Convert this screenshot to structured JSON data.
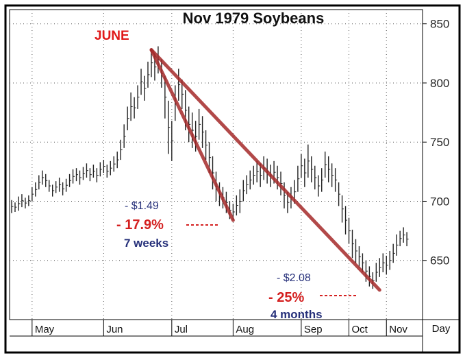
{
  "chart_data": {
    "type": "bar",
    "subtype": "ohlc",
    "title": "Nov 1979 Soybeans",
    "y_axis_side": "right",
    "ylim": [
      600,
      862
    ],
    "yticks": [
      650,
      700,
      750,
      800,
      850
    ],
    "grid": true,
    "x_tick_labels": [
      "May",
      "Jun",
      "Jul",
      "Aug",
      "Sep",
      "Oct",
      "Nov"
    ],
    "x_period_label": "Day",
    "series": [
      {
        "values": [
          {
            "t": 0.0,
            "h": 701,
            "l": 690
          },
          {
            "t": 0.5,
            "h": 699,
            "l": 691
          },
          {
            "t": 1.0,
            "h": 704,
            "l": 692
          },
          {
            "t": 1.5,
            "h": 706,
            "l": 695
          },
          {
            "t": 2.0,
            "h": 703,
            "l": 694
          },
          {
            "t": 2.5,
            "h": 705,
            "l": 696
          },
          {
            "t": 3.0,
            "h": 712,
            "l": 700
          },
          {
            "t": 3.5,
            "h": 716,
            "l": 704
          },
          {
            "t": 4.0,
            "h": 722,
            "l": 710
          },
          {
            "t": 4.5,
            "h": 726,
            "l": 714
          },
          {
            "t": 5.0,
            "h": 723,
            "l": 712
          },
          {
            "t": 5.5,
            "h": 718,
            "l": 708
          },
          {
            "t": 6.0,
            "h": 714,
            "l": 704
          },
          {
            "t": 6.5,
            "h": 717,
            "l": 707
          },
          {
            "t": 7.0,
            "h": 720,
            "l": 708
          },
          {
            "t": 7.5,
            "h": 716,
            "l": 705
          },
          {
            "t": 8.0,
            "h": 719,
            "l": 708
          },
          {
            "t": 8.5,
            "h": 723,
            "l": 712
          },
          {
            "t": 9.0,
            "h": 727,
            "l": 715
          },
          {
            "t": 9.5,
            "h": 728,
            "l": 717
          },
          {
            "t": 10.0,
            "h": 726,
            "l": 714
          },
          {
            "t": 10.5,
            "h": 729,
            "l": 718
          },
          {
            "t": 11.0,
            "h": 732,
            "l": 720
          },
          {
            "t": 11.5,
            "h": 728,
            "l": 717
          },
          {
            "t": 12.0,
            "h": 731,
            "l": 720
          },
          {
            "t": 12.5,
            "h": 728,
            "l": 716
          },
          {
            "t": 13.0,
            "h": 733,
            "l": 721
          },
          {
            "t": 13.5,
            "h": 735,
            "l": 724
          },
          {
            "t": 14.0,
            "h": 731,
            "l": 720
          },
          {
            "t": 14.5,
            "h": 734,
            "l": 722
          },
          {
            "t": 15.0,
            "h": 738,
            "l": 725
          },
          {
            "t": 15.5,
            "h": 742,
            "l": 728
          },
          {
            "t": 16.0,
            "h": 752,
            "l": 735
          },
          {
            "t": 16.5,
            "h": 765,
            "l": 745
          },
          {
            "t": 17.0,
            "h": 780,
            "l": 760
          },
          {
            "t": 17.5,
            "h": 792,
            "l": 768
          },
          {
            "t": 18.0,
            "h": 788,
            "l": 770
          },
          {
            "t": 18.5,
            "h": 798,
            "l": 778
          },
          {
            "t": 19.0,
            "h": 812,
            "l": 790
          },
          {
            "t": 19.5,
            "h": 806,
            "l": 785
          },
          {
            "t": 20.0,
            "h": 818,
            "l": 796
          },
          {
            "t": 20.5,
            "h": 829,
            "l": 805
          },
          {
            "t": 21.0,
            "h": 825,
            "l": 802
          },
          {
            "t": 21.5,
            "h": 831,
            "l": 808
          },
          {
            "t": 22.0,
            "h": 820,
            "l": 796
          },
          {
            "t": 22.5,
            "h": 806,
            "l": 770
          },
          {
            "t": 23.0,
            "h": 785,
            "l": 740
          },
          {
            "t": 23.5,
            "h": 768,
            "l": 734
          },
          {
            "t": 24.0,
            "h": 798,
            "l": 768
          },
          {
            "t": 24.5,
            "h": 812,
            "l": 785
          },
          {
            "t": 25.0,
            "h": 803,
            "l": 778
          },
          {
            "t": 25.5,
            "h": 794,
            "l": 760
          },
          {
            "t": 26.0,
            "h": 780,
            "l": 750
          },
          {
            "t": 26.5,
            "h": 775,
            "l": 745
          },
          {
            "t": 27.0,
            "h": 768,
            "l": 742
          },
          {
            "t": 27.5,
            "h": 778,
            "l": 752
          },
          {
            "t": 28.0,
            "h": 772,
            "l": 745
          },
          {
            "t": 28.5,
            "h": 760,
            "l": 735
          },
          {
            "t": 29.0,
            "h": 750,
            "l": 724
          },
          {
            "t": 29.5,
            "h": 738,
            "l": 710
          },
          {
            "t": 30.0,
            "h": 725,
            "l": 700
          },
          {
            "t": 30.5,
            "h": 716,
            "l": 696
          },
          {
            "t": 31.0,
            "h": 712,
            "l": 694
          },
          {
            "t": 31.5,
            "h": 708,
            "l": 690
          },
          {
            "t": 32.0,
            "h": 700,
            "l": 685
          },
          {
            "t": 32.5,
            "h": 698,
            "l": 684
          },
          {
            "t": 33.0,
            "h": 705,
            "l": 688
          },
          {
            "t": 33.5,
            "h": 710,
            "l": 690
          },
          {
            "t": 34.0,
            "h": 718,
            "l": 700
          },
          {
            "t": 34.5,
            "h": 722,
            "l": 706
          },
          {
            "t": 35.0,
            "h": 726,
            "l": 710
          },
          {
            "t": 35.5,
            "h": 730,
            "l": 714
          },
          {
            "t": 36.0,
            "h": 734,
            "l": 716
          },
          {
            "t": 36.5,
            "h": 732,
            "l": 712
          },
          {
            "t": 37.0,
            "h": 738,
            "l": 718
          },
          {
            "t": 37.5,
            "h": 736,
            "l": 715
          },
          {
            "t": 38.0,
            "h": 731,
            "l": 712
          },
          {
            "t": 38.5,
            "h": 734,
            "l": 715
          },
          {
            "t": 39.0,
            "h": 730,
            "l": 710
          },
          {
            "t": 39.5,
            "h": 725,
            "l": 705
          },
          {
            "t": 40.0,
            "h": 716,
            "l": 694
          },
          {
            "t": 40.5,
            "h": 708,
            "l": 690
          },
          {
            "t": 41.0,
            "h": 712,
            "l": 694
          },
          {
            "t": 41.5,
            "h": 718,
            "l": 698
          },
          {
            "t": 42.0,
            "h": 730,
            "l": 708
          },
          {
            "t": 42.5,
            "h": 740,
            "l": 720
          },
          {
            "t": 43.0,
            "h": 736,
            "l": 712
          },
          {
            "t": 43.5,
            "h": 748,
            "l": 720
          },
          {
            "t": 44.0,
            "h": 738,
            "l": 716
          },
          {
            "t": 44.5,
            "h": 730,
            "l": 710
          },
          {
            "t": 45.0,
            "h": 722,
            "l": 704
          },
          {
            "t": 45.5,
            "h": 728,
            "l": 708
          },
          {
            "t": 46.0,
            "h": 742,
            "l": 720
          },
          {
            "t": 46.5,
            "h": 738,
            "l": 716
          },
          {
            "t": 47.0,
            "h": 732,
            "l": 712
          },
          {
            "t": 47.5,
            "h": 728,
            "l": 708
          },
          {
            "t": 48.0,
            "h": 716,
            "l": 696
          },
          {
            "t": 48.5,
            "h": 705,
            "l": 682
          },
          {
            "t": 49.0,
            "h": 696,
            "l": 672
          },
          {
            "t": 49.5,
            "h": 686,
            "l": 664
          },
          {
            "t": 50.0,
            "h": 676,
            "l": 652
          },
          {
            "t": 50.5,
            "h": 668,
            "l": 648
          },
          {
            "t": 51.0,
            "h": 662,
            "l": 644
          },
          {
            "t": 51.5,
            "h": 656,
            "l": 640
          },
          {
            "t": 52.0,
            "h": 650,
            "l": 632
          },
          {
            "t": 52.5,
            "h": 645,
            "l": 628
          },
          {
            "t": 53.0,
            "h": 640,
            "l": 626
          },
          {
            "t": 53.5,
            "h": 648,
            "l": 632
          },
          {
            "t": 54.0,
            "h": 652,
            "l": 636
          },
          {
            "t": 54.5,
            "h": 656,
            "l": 640
          },
          {
            "t": 55.0,
            "h": 654,
            "l": 638
          },
          {
            "t": 55.5,
            "h": 658,
            "l": 642
          },
          {
            "t": 56.0,
            "h": 664,
            "l": 648
          },
          {
            "t": 56.5,
            "h": 672,
            "l": 654
          },
          {
            "t": 57.0,
            "h": 675,
            "l": 662
          },
          {
            "t": 57.5,
            "h": 678,
            "l": 665
          },
          {
            "t": 58.0,
            "h": 674,
            "l": 662
          }
        ]
      }
    ],
    "annotations": {
      "peak_label": "JUNE",
      "first": {
        "change": "- $1.49",
        "percent": "- 17.9%",
        "duration": "7 weeks"
      },
      "second": {
        "change": "- $2.08",
        "percent": "- 25%",
        "duration": "4 months"
      }
    },
    "trend_lines": [
      {
        "from": {
          "t": 20.5,
          "v": 828
        },
        "to": {
          "t": 32.5,
          "v": 684
        }
      },
      {
        "from": {
          "t": 20.5,
          "v": 828
        },
        "to": {
          "t": 54.0,
          "v": 625
        }
      }
    ],
    "colors": {
      "trend_line": "#a52a2a",
      "annotation_red": "#d42020",
      "annotation_blue": "#26307a",
      "bars": "#222222"
    }
  }
}
